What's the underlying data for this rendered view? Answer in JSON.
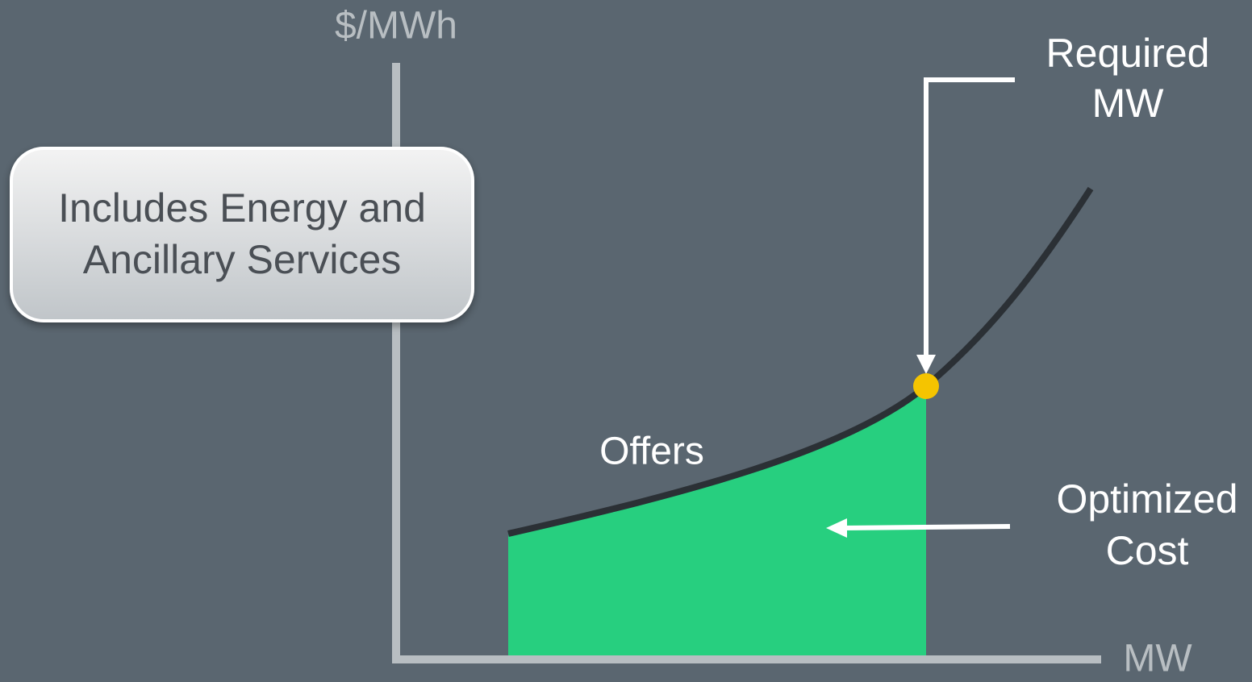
{
  "y_axis_label": "$/MWh",
  "x_axis_label": "MW",
  "note_box": {
    "lines": [
      "Includes Energy and",
      "Ancillary Services"
    ]
  },
  "curve_label": "Offers",
  "required_callout": {
    "lines": [
      "Required",
      "MW"
    ]
  },
  "cost_callout": {
    "lines": [
      "Optimized",
      "Cost"
    ]
  }
}
